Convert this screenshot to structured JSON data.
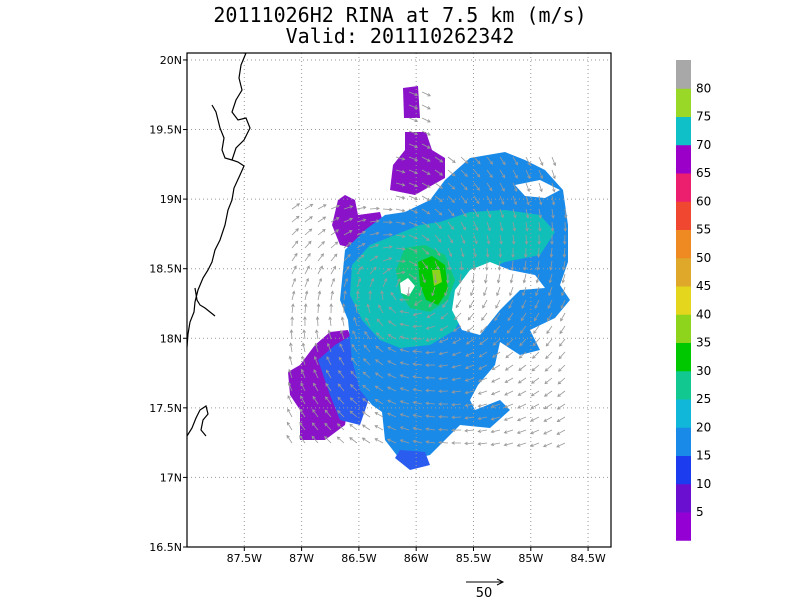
{
  "title": "20111026H2 RINA at 7.5 km (m/s)",
  "subtitle": "Valid: 201110262342",
  "map": {
    "lat_ticks": [
      "16.5N",
      "17N",
      "17.5N",
      "18N",
      "18.5N",
      "19N",
      "19.5N",
      "20N"
    ],
    "lon_ticks": [
      "87.5W",
      "87W",
      "86.5W",
      "86W",
      "85.5W",
      "85W",
      "84.5W"
    ],
    "lat_range": [
      16.5,
      20.05
    ],
    "lon_range": [
      -88.0,
      -84.3
    ],
    "grid": "dotted"
  },
  "colorbar": {
    "labels": [
      "5",
      "10",
      "15",
      "20",
      "25",
      "30",
      "35",
      "40",
      "45",
      "50",
      "55",
      "60",
      "65",
      "70",
      "75",
      "80"
    ],
    "colors": [
      "#9400d3",
      "#6a0fd0",
      "#1c3cf0",
      "#1a8ae8",
      "#10b7d8",
      "#10c890",
      "#00c800",
      "#8fd41c",
      "#e3d61c",
      "#dfa82a",
      "#ef8a22",
      "#f04830",
      "#ec1e6e",
      "#9a00c8",
      "#10c0c8",
      "#9ad828",
      "#a8a8a8"
    ]
  },
  "reference_vector": {
    "label": "50",
    "value": 50
  },
  "colors": {
    "coastline": "#000000",
    "vector": "#9a9a9a"
  }
}
